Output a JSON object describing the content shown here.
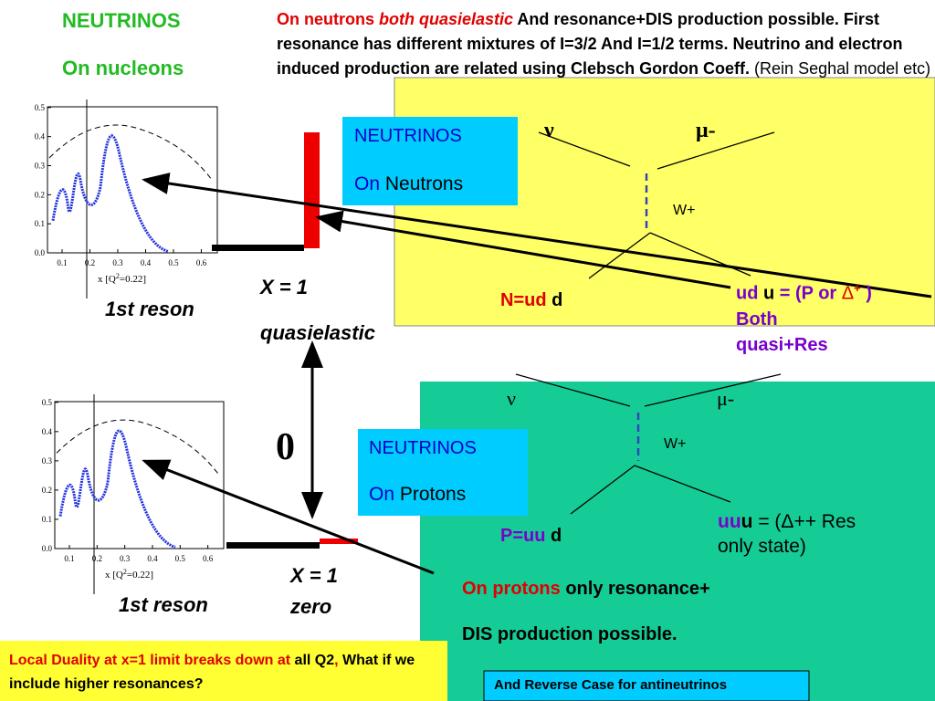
{
  "header": {
    "title": "NEUTRINOS",
    "subtitle": "On nucleons"
  },
  "intro": {
    "red_plain": "On neutrons ",
    "red_italic": "both quasielastic",
    "black": " And resonance+DIS production possible.  First resonance has different mixtures of I=3/2 And I=1/2 terms. Neutrino and electron induced production are related using Clebsch Gordon Coeff.",
    "note": " (Rein Seghal model etc)"
  },
  "plots": [
    {
      "yticks": [
        "0.0",
        "0.1",
        "0.2",
        "0.3",
        "0.4",
        "0.5"
      ],
      "xticks": [
        "0.1",
        "0.2",
        "0.3",
        "0.4",
        "0.5",
        "0.6"
      ],
      "xlabel_pre": "x [Q",
      "xlabel_sup": "2",
      "xlabel_post": "=0.22]",
      "caption": "1st reson"
    },
    {
      "yticks": [
        "0.0",
        "0.1",
        "0.2",
        "0.3",
        "0.4",
        "0.5"
      ],
      "xticks": [
        "0.1",
        "0.2",
        "0.3",
        "0.4",
        "0.5",
        "0.6"
      ],
      "xlabel_pre": "x [Q",
      "xlabel_sup": "2",
      "xlabel_post": "=0.22]",
      "caption": "1st reson"
    }
  ],
  "middle": {
    "x1_top": "X = 1",
    "quasielastic": "quasielastic",
    "zero_symbol": "0",
    "x1_bottom": "X = 1",
    "zero": "zero"
  },
  "neutrons": {
    "box_line1": "NEUTRINOS",
    "box_line2_a": "On ",
    "box_line2_b": "Neutrons",
    "nu": "ν",
    "mu": "μ-",
    "w": "W+",
    "target_a": "N=ud",
    "target_b": " d",
    "final_a": "ud ",
    "final_b": "u",
    "final_c": " = (P or ",
    "final_d": "Δ",
    "final_e": "+",
    "final_f": " )",
    "both": "Both",
    "quasi": "quasi+Res"
  },
  "protons": {
    "box_line1": "NEUTRINOS",
    "box_line2_a": "On ",
    "box_line2_b": "Protons",
    "nu": "ν",
    "mu": "μ-",
    "w": "W+",
    "target_a": "P=uu",
    "target_b": " d",
    "final_a": "uu",
    "final_b": "u",
    "final_c": " = (Δ++ Res",
    "final_d": "only state)",
    "note_a": "On protons",
    "note_b": " only  resonance+",
    "note_c": "DIS production possible."
  },
  "footer": {
    "duality_a": "Local Duality at x=1 limit breaks down at ",
    "duality_b": "all",
    "duality_c": "Q2",
    "duality_d": ",",
    "duality_e": "  What if we include higher resonances?",
    "reverse": "And Reverse Case for antineutrinos"
  }
}
